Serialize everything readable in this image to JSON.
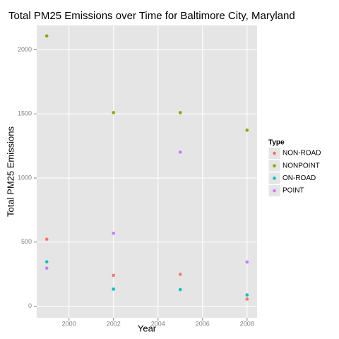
{
  "chart_data": {
    "type": "scatter",
    "title": "Total PM25 Emissions over Time for Baltimore City, Maryland",
    "xlabel": "Year",
    "ylabel": "Total PM25 Emissions",
    "legend_title": "Type",
    "x": [
      1999,
      2002,
      2005,
      2008
    ],
    "series": [
      {
        "name": "NON-ROAD",
        "color": "#F8766D",
        "values": [
          523,
          241,
          249,
          56
        ]
      },
      {
        "name": "NONPOINT",
        "color": "#7CAE00",
        "values": [
          2108,
          1510,
          1510,
          1373
        ]
      },
      {
        "name": "ON-ROAD",
        "color": "#00BFC4",
        "values": [
          347,
          134,
          130,
          88
        ]
      },
      {
        "name": "POINT",
        "color": "#C77CFF",
        "values": [
          297,
          569,
          1202,
          345
        ]
      }
    ],
    "xlim": [
      1998.55,
      2008.45
    ],
    "xticks": [
      2000,
      2002,
      2004,
      2006,
      2008
    ],
    "ylim": [
      -90,
      2190
    ],
    "yticks": [
      0,
      500,
      1000,
      1500,
      2000
    ],
    "grid": true,
    "legend": "right"
  }
}
